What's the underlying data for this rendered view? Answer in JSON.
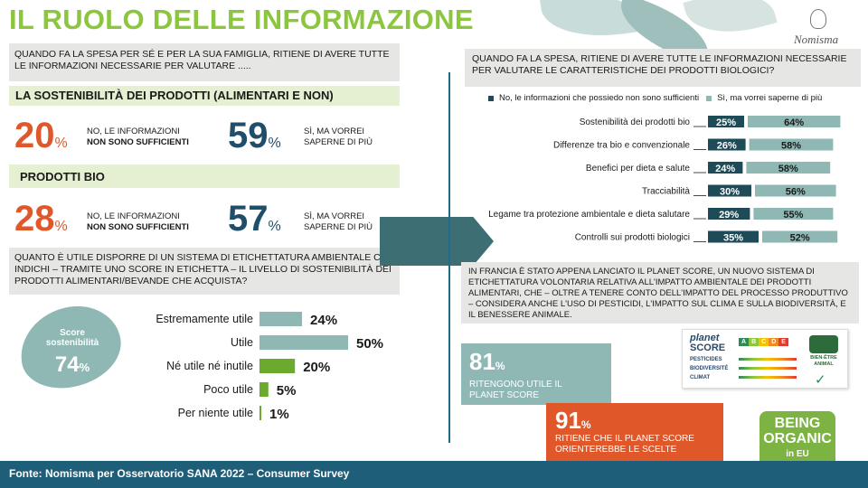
{
  "title": "IL RUOLO DELLE INFORMAZIONE",
  "brand": "Nomisma",
  "left": {
    "question": "QUANDO FA LA SPESA PER SÉ E PER LA SUA FAMIGLIA, RITIENE DI AVERE TUTTE LE INFORMAZIONI NECESSARIE PER VALUTARE .....",
    "section1": {
      "title": "LA SOSTENIBILITÀ DEI PRODOTTI (ALIMENTARI E NON)",
      "stat_no_value": "20",
      "stat_no_label1": "NO, LE INFORMAZIONI",
      "stat_no_label2": "NON SONO SUFFICIENTI",
      "stat_yes_value": "59",
      "stat_yes_label1": "SÌ, MA VORREI",
      "stat_yes_label2": "SAPERNE DI PIÙ",
      "pct": "%"
    },
    "section2": {
      "title": "PRODOTTI BIO",
      "stat_no_value": "28",
      "stat_no_label1": "NO, LE INFORMAZIONI",
      "stat_no_label2": "NON SONO SUFFICIENTI",
      "stat_yes_value": "57",
      "stat_yes_label1": "SÌ, MA VORREI",
      "stat_yes_label2": "SAPERNE DI PIÙ",
      "pct": "%"
    },
    "question2": "QUANTO È UTILE DISPORRE DI UN SISTEMA DI ETICHETTATURA AMBIENTALE CHE INDICHI – TRAMITE UNO SCORE IN ETICHETTA – IL LIVELLO DI SOSTENIBILITÀ DEI PRODOTTI ALIMENTARI/BEVANDE CHE ACQUISTA?",
    "score_badge": {
      "label1": "Score",
      "label2": "sostenibilità",
      "value": "74",
      "pct": "%"
    }
  },
  "right": {
    "question": "QUANDO FA LA SPESA, RITIENE DI AVERE TUTTE LE INFORMAZIONI NECESSARIE PER VALUTARE LE CARATTERISTICHE DEI PRODOTTI BIOLOGICI?",
    "legend_no": "No, le informazioni che possiedo non sono sufficienti",
    "legend_yes": "Sì, ma vorrei saperne di più",
    "info": "IN FRANCIA È STATO APPENA LANCIATO IL PLANET SCORE, UN NUOVO SISTEMA DI ETICHETTATURA VOLONTARIA RELATIVA ALL'IMPATTO AMBIENTALE DEI PRODOTTI ALIMENTARI, CHE – OLTRE A TENERE CONTO DELL'IMPATTO DEL PROCESSO PRODUTTIVO – CONSIDERA ANCHE L'USO DI PESTICIDI, L'IMPATTO SUL CLIMA E SULLA BIODIVERSITÀ, E IL BENESSERE ANIMALE.",
    "callout1": {
      "value": "81",
      "pct": "%",
      "text1": "RITENGONO UTILE IL",
      "text2": "PLANET SCORE"
    },
    "callout2": {
      "value": "91",
      "pct": "%",
      "text1": "RITIENE CHE  IL PLANET SCORE",
      "text2": "ORIENTEREBBE  LE SCELTE"
    },
    "planet_score": {
      "line1": "planet",
      "line2": "SCORE",
      "rows": [
        "PESTICIDES",
        "BIODIVERSITÉ",
        "CLIMAT"
      ],
      "grades": [
        "A",
        "B",
        "C",
        "D",
        "E"
      ],
      "animal1": "BIEN-ÊTRE",
      "animal2": "ANIMAL"
    },
    "being_organic": {
      "line1": "BEING",
      "line2": "ORGANIC",
      "line3": "in EU"
    }
  },
  "footer": "Fonte: Nomisma per Osservatorio SANA 2022 – Consumer Survey",
  "colors": {
    "title_green": "#8cc63f",
    "orange": "#e0582a",
    "teal_dark": "#1f4e6b",
    "bar_teal": "#8fb8b4",
    "bar_green": "#6aaa2e",
    "no_dark": "#1f4b58",
    "footer": "#1f5e78"
  },
  "chart_data": [
    {
      "type": "bar",
      "orientation": "horizontal",
      "categories": [
        "Estremamente utile",
        "Utile",
        "Né utile né inutile",
        "Poco utile",
        "Per niente utile"
      ],
      "values": [
        24,
        50,
        20,
        5,
        1
      ],
      "value_labels": [
        "24%",
        "50%",
        "20%",
        "5%",
        "1%"
      ],
      "colors": [
        "#8fb8b4",
        "#8fb8b4",
        "#6aaa2e",
        "#6aaa2e",
        "#6aaa2e"
      ]
    },
    {
      "type": "bar",
      "orientation": "horizontal",
      "stacked": true,
      "categories": [
        "Sostenibilità dei prodotti bio",
        "Differenze tra bio e convenzionale",
        "Benefici per dieta e salute",
        "Tracciabilità",
        "Legame tra protezione ambientale e dieta salutare",
        "Controlli sui prodotti biologici"
      ],
      "series": [
        {
          "name": "No, le informazioni che possiedo non sono sufficienti",
          "values": [
            25,
            26,
            24,
            30,
            29,
            35
          ],
          "labels": [
            "25%",
            "26%",
            "24%",
            "30%",
            "29%",
            "35%"
          ]
        },
        {
          "name": "Sì, ma vorrei saperne di più",
          "values": [
            64,
            58,
            58,
            56,
            55,
            52
          ],
          "labels": [
            "64%",
            "58%",
            "58%",
            "56%",
            "55%",
            "52%"
          ]
        }
      ]
    }
  ]
}
